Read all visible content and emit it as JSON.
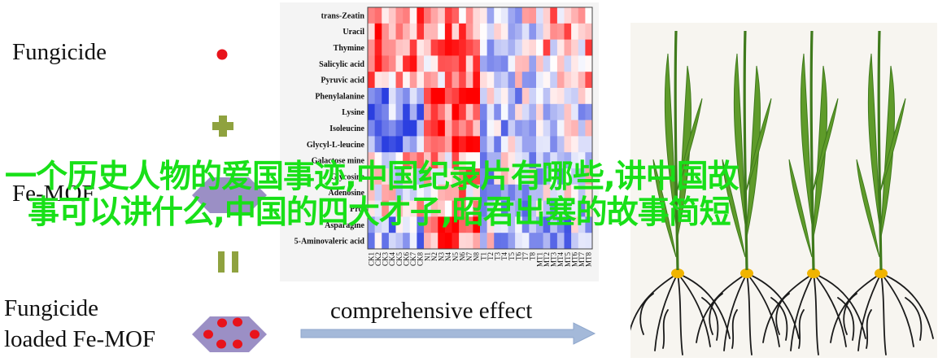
{
  "legend": {
    "fungicide_label": "Fungicide",
    "femof_label": "Fe-MOF",
    "loaded_line1": "Fungicide",
    "loaded_line2": "loaded Fe-MOF",
    "effect_label": "comprehensive effect"
  },
  "symbol_colors": {
    "fungicide_dot": "#e8131b",
    "plus": "#8fa23f",
    "hexagon": "#9b8fc5",
    "pause_bars": "#8fa23f",
    "arrow": "#a4b9d9"
  },
  "heatmap": {
    "row_labels": [
      "trans-Zeatin",
      "Uracil",
      "Thymine",
      "Salicylic acid",
      "Pyruvic acid",
      "Phenylalanine",
      "Lysine",
      "Isoleucine",
      "Glycyl-L-leucine",
      "Galactose mine",
      "Glycosine",
      "Adenosine",
      "Pro.",
      "Asparagine",
      "5-Aminovaleric acid"
    ],
    "column_labels": [
      "CK1",
      "CK2",
      "CK3",
      "CK4",
      "CK5",
      "CK6",
      "CK7",
      "CK8",
      "N1",
      "N2",
      "N3",
      "N4",
      "N5",
      "N6",
      "N7",
      "N8",
      "T1",
      "T2",
      "T3",
      "T4",
      "T5",
      "T6",
      "T7",
      "T8",
      "MT1",
      "MT2",
      "MT3",
      "MT4",
      "MT5",
      "MT6",
      "MT7",
      "MT8"
    ],
    "scale_colors": {
      "low": "#2b3fe0",
      "mid": "#ffffff",
      "high": "#ff0000"
    }
  },
  "overlay": {
    "line1": "一个历史人物的爱国事迹,中国纪录片有哪些,讲中国故",
    "line2": "事可以讲什么,中国的四大才子,昭君出塞的故事简短"
  }
}
